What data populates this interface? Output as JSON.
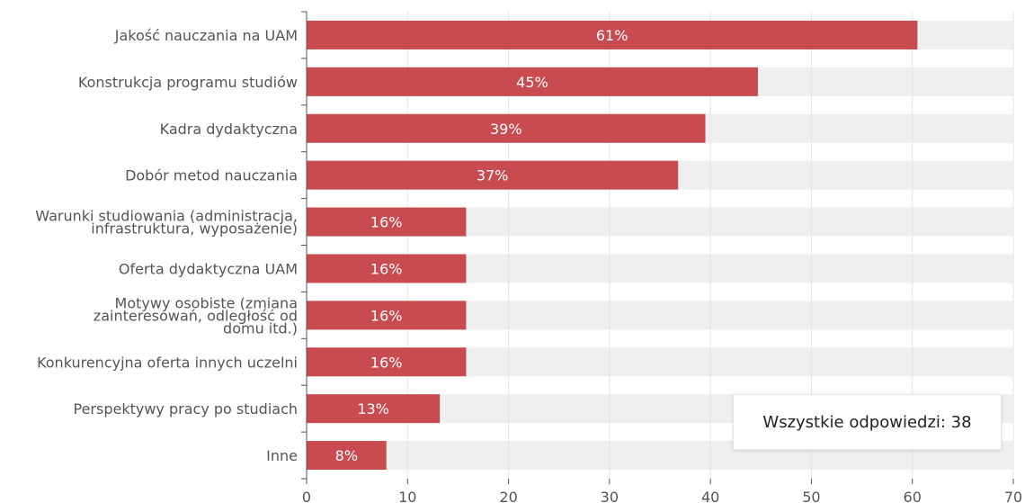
{
  "chart_data": {
    "type": "bar",
    "orientation": "horizontal",
    "categories": [
      "Jakość nauczania na UAM",
      "Konstrukcja programu studiów",
      "Kadra dydaktyczna",
      "Dobór metod nauczania",
      "Warunki studiowania (administracja, infrastruktura, wyposażenie)",
      "Oferta dydaktyczna UAM",
      "Motywy osobiste (zmiana zainteresowań, odległość od domu itd.)",
      "Konkurencyjna oferta innych uczelni",
      "Perspektywy pracy po studiach",
      "Inne"
    ],
    "category_label_lines": [
      [
        "Jakość nauczania na UAM"
      ],
      [
        "Konstrukcja programu studiów"
      ],
      [
        "Kadra dydaktyczna"
      ],
      [
        "Dobór metod nauczania"
      ],
      [
        "Warunki studiowania (administracja,",
        "infrastruktura, wyposażenie)"
      ],
      [
        "Oferta dydaktyczna UAM"
      ],
      [
        "Motywy osobiste (zmiana",
        "zainteresowań, odległość od",
        "domu itd.)"
      ],
      [
        "Konkurencyjna oferta innych uczelni"
      ],
      [
        "Perspektywy pracy po studiach"
      ],
      [
        "Inne"
      ]
    ],
    "values": [
      60.5,
      44.7,
      39.5,
      36.8,
      15.8,
      15.8,
      15.8,
      15.8,
      13.2,
      7.9
    ],
    "data_labels": [
      "61%",
      "45%",
      "39%",
      "37%",
      "16%",
      "16%",
      "16%",
      "16%",
      "13%",
      "8%"
    ],
    "xlim": [
      0,
      70
    ],
    "xticks": [
      0,
      10,
      20,
      30,
      40,
      50,
      60,
      70
    ],
    "grid": true,
    "bar_color": "#c84b50",
    "track_color": "#efefef",
    "legend_text": "Wszystkie odpowiedzi: 38",
    "legend_position": "bottom-right"
  }
}
